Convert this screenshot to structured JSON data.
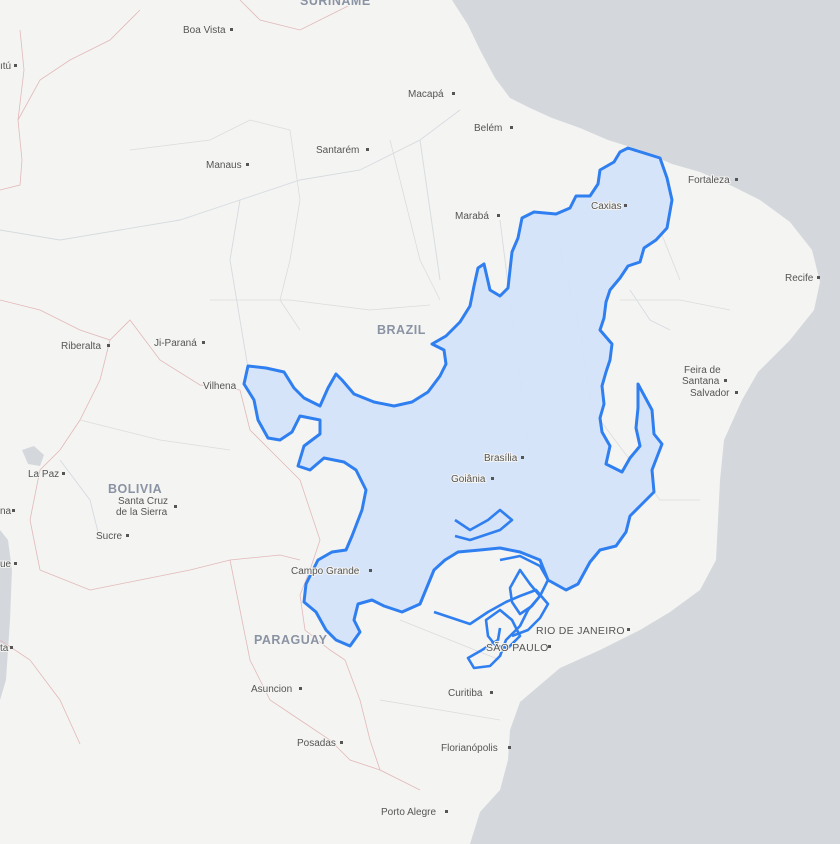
{
  "map": {
    "colors": {
      "land": "#f4f4f2",
      "ocean": "#d4d8dc",
      "highlight_fill": "#d4e3fa",
      "highlight_stroke": "#2f7ff0",
      "border": "#e2b9b9"
    },
    "countries": {
      "brazil": "BRAZIL",
      "bolivia": "BOLIVIA",
      "paraguay": "PARAGUAY",
      "suriname": "SURINAME"
    },
    "cities": {
      "boa_vista": "Boa Vista",
      "macapa": "Macapá",
      "belem": "Belém",
      "manaus": "Manaus",
      "santarem": "Santarém",
      "fortaleza": "Fortaleza",
      "caxias": "Caxias",
      "maraba": "Marabá",
      "recife": "Recife",
      "ribeiralta": "Riberalta",
      "ji_parana": "Ji-Paraná",
      "vilhena": "Vilhena",
      "feira_de_santana_1": "Feira de",
      "feira_de_santana_2": "Santana",
      "salvador": "Salvador",
      "brasilia": "Brasília",
      "goiania": "Goiânia",
      "la_paz": "La Paz",
      "santa_cruz_1": "Santa Cruz",
      "santa_cruz_2": "de la Sierra",
      "sucre": "Sucre",
      "campo_grande": "Campo Grande",
      "rio_de_janeiro": "RIO DE JANEIRO",
      "sao_paulo": "SÃO PAULO",
      "curitiba": "Curitiba",
      "asuncion": "Asuncion",
      "posadas": "Posadas",
      "florianopolis": "Florianópolis",
      "porto_alegre": "Porto Alegre",
      "edge_left_1": "ıtú",
      "edge_left_2": "na",
      "edge_left_3": "ue",
      "edge_left_4": "ta"
    }
  }
}
